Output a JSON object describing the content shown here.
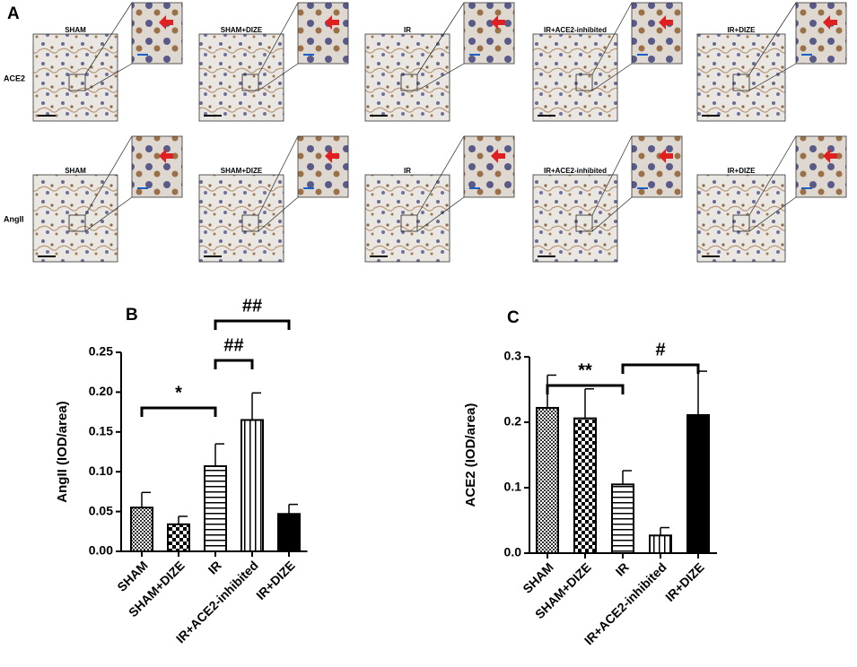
{
  "figure": {
    "panel_label": "A",
    "columns": [
      "SHAM",
      "SHAM+DIZE",
      "IR",
      "IR+ACE2-inhibited",
      "IR+DIZE"
    ],
    "rows": [
      "ACE2",
      "AngII"
    ]
  },
  "chart_data": [
    {
      "type": "bar",
      "panel_label": "B",
      "y_label": "AngII (IOD/area)",
      "categories": [
        "SHAM",
        "SHAM+DIZE",
        "IR",
        "IR+ACE2-inhibited",
        "IR+DIZE"
      ],
      "values": [
        0.055,
        0.034,
        0.107,
        0.165,
        0.047
      ],
      "errors": [
        0.019,
        0.01,
        0.028,
        0.034,
        0.012
      ],
      "patterns": [
        "checker-fine",
        "checker",
        "hlines",
        "vlines",
        "solid"
      ],
      "ylim": [
        0,
        0.25
      ],
      "yticks": [
        {
          "value": 0,
          "label": "0.00"
        },
        {
          "value": 0.05,
          "label": "0.05"
        },
        {
          "value": 0.1,
          "label": "0.10"
        },
        {
          "value": 0.15,
          "label": "0.15"
        },
        {
          "value": 0.2,
          "label": "0.20"
        },
        {
          "value": 0.25,
          "label": "0.25"
        }
      ],
      "annotations": [
        {
          "text": "*",
          "from": 0,
          "to": 2
        },
        {
          "text": "##",
          "from": 2,
          "to": 3
        },
        {
          "text": "##",
          "from": 2,
          "to": 4
        }
      ]
    },
    {
      "type": "bar",
      "panel_label": "C",
      "y_label": "ACE2 (IOD/area)",
      "categories": [
        "SHAM",
        "SHAM+DIZE",
        "IR",
        "IR+ACE2-inhibited",
        "IR+DIZE"
      ],
      "values": [
        0.222,
        0.206,
        0.105,
        0.027,
        0.211
      ],
      "errors": [
        0.05,
        0.045,
        0.021,
        0.012,
        0.067
      ],
      "patterns": [
        "checker-fine",
        "checker",
        "hlines",
        "vlines",
        "solid"
      ],
      "ylim": [
        0,
        0.3
      ],
      "yticks": [
        {
          "value": 0,
          "label": "0.0"
        },
        {
          "value": 0.1,
          "label": "0.1"
        },
        {
          "value": 0.2,
          "label": "0.2"
        },
        {
          "value": 0.3,
          "label": "0.3"
        }
      ],
      "annotations": [
        {
          "text": "**",
          "from": 0,
          "to": 2
        },
        {
          "text": "#",
          "from": 2,
          "to": 4
        }
      ]
    }
  ]
}
